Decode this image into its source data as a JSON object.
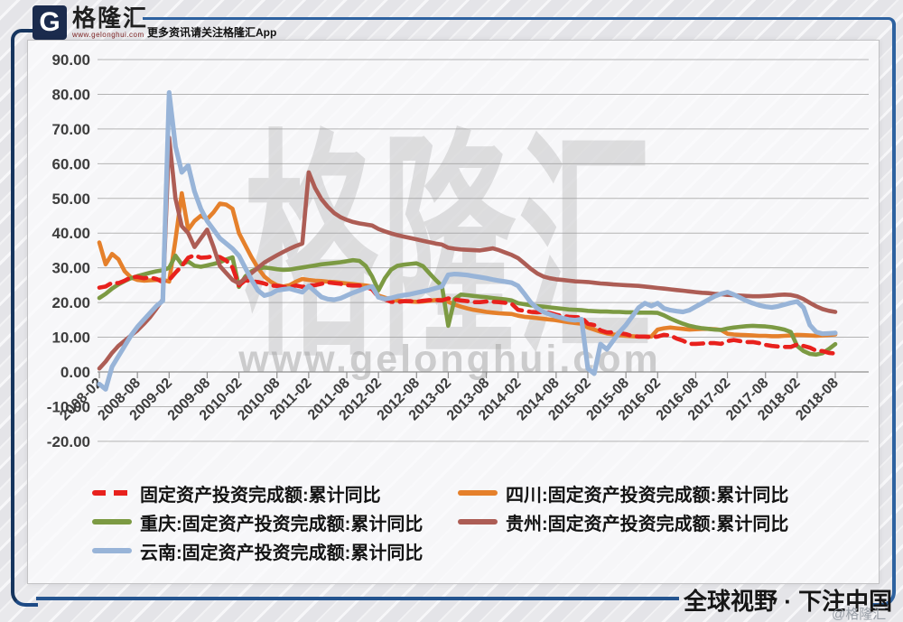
{
  "header": {
    "logo_letter": "G",
    "brand_name": "格隆汇",
    "brand_url": "www.gelonghui.com",
    "tagline": "更多资讯请关注格隆汇App"
  },
  "watermark": {
    "brand": "格隆汇",
    "url": "www.gelonghui.com"
  },
  "footer": {
    "slogan": "全球视野 · 下注中国",
    "credit": "@格隆汇"
  },
  "chart_data": {
    "type": "line",
    "title": "",
    "xlabel": "",
    "ylabel": "",
    "ylim": [
      -20,
      90
    ],
    "grid": true,
    "legend_position": "bottom",
    "y_ticks": [
      90,
      80,
      70,
      60,
      50,
      40,
      30,
      20,
      10,
      0,
      -10,
      -20
    ],
    "y_tick_decimals": 2,
    "n_points": 117,
    "x_tick_labels": [
      {
        "label": "2008-02",
        "index": 0
      },
      {
        "label": "2008-08",
        "index": 6
      },
      {
        "label": "2009-02",
        "index": 11
      },
      {
        "label": "2009-08",
        "index": 17
      },
      {
        "label": "2010-02",
        "index": 22
      },
      {
        "label": "2010-08",
        "index": 28
      },
      {
        "label": "2011-02",
        "index": 33
      },
      {
        "label": "2011-08",
        "index": 39
      },
      {
        "label": "2012-02",
        "index": 44
      },
      {
        "label": "2012-08",
        "index": 50
      },
      {
        "label": "2013-02",
        "index": 55
      },
      {
        "label": "2013-08",
        "index": 61
      },
      {
        "label": "2014-02",
        "index": 66
      },
      {
        "label": "2014-08",
        "index": 72
      },
      {
        "label": "2015-02",
        "index": 77
      },
      {
        "label": "2015-08",
        "index": 83
      },
      {
        "label": "2016-02",
        "index": 88
      },
      {
        "label": "2016-08",
        "index": 94
      },
      {
        "label": "2017-02",
        "index": 99
      },
      {
        "label": "2017-08",
        "index": 105
      },
      {
        "label": "2018-02",
        "index": 110
      },
      {
        "label": "2018-08",
        "index": 116
      }
    ],
    "series": [
      {
        "name": "固定资产投资完成额:累计同比",
        "color": "#e8211d",
        "dashed": true,
        "values": [
          24.3,
          24.6,
          25.7,
          25.6,
          26.3,
          27.3,
          27.4,
          27.0,
          27.2,
          26.8,
          25.9,
          26.5,
          28.6,
          30.5,
          32.9,
          33.6,
          32.9,
          33.0,
          33.4,
          33.1,
          32.1,
          30.1,
          24.9,
          26.4,
          26.1,
          25.9,
          25.5,
          24.9,
          24.8,
          24.5,
          24.4,
          24.9,
          24.5,
          24.9,
          25.0,
          25.4,
          25.8,
          25.6,
          25.4,
          25.0,
          24.9,
          24.9,
          24.5,
          23.8,
          21.5,
          20.9,
          20.2,
          20.1,
          20.4,
          20.4,
          20.2,
          20.5,
          20.7,
          20.7,
          20.6,
          21.2,
          20.9,
          20.6,
          20.4,
          20.1,
          20.1,
          20.3,
          20.2,
          20.1,
          19.9,
          19.6,
          17.9,
          17.6,
          17.3,
          17.2,
          17.3,
          17.0,
          16.5,
          16.1,
          15.9,
          15.8,
          15.7,
          13.9,
          13.5,
          12.0,
          11.4,
          11.4,
          11.2,
          10.9,
          10.3,
          10.2,
          10.2,
          10.0,
          10.2,
          10.7,
          10.5,
          9.6,
          9.0,
          8.1,
          8.1,
          8.2,
          8.3,
          8.3,
          8.1,
          8.9,
          9.2,
          8.9,
          8.6,
          8.6,
          8.3,
          7.8,
          7.5,
          7.3,
          7.2,
          7.2,
          7.9,
          7.5,
          7.0,
          6.1,
          6.0,
          5.5,
          5.3
        ]
      },
      {
        "name": "四川:固定资产投资完成额:累计同比",
        "color": "#e5802b",
        "dashed": false,
        "values": [
          37.3,
          31.0,
          34.0,
          32.5,
          29.0,
          27.2,
          26.5,
          26.3,
          26.4,
          26.5,
          26.6,
          26.0,
          38.0,
          51.5,
          41.0,
          43.5,
          45.0,
          44.0,
          46.0,
          48.5,
          48.2,
          47.0,
          40.0,
          36.5,
          33.0,
          30.0,
          27.5,
          26.0,
          25.0,
          24.6,
          25.0,
          26.0,
          26.8,
          26.5,
          26.3,
          26.2,
          26.0,
          25.9,
          25.7,
          25.5,
          25.3,
          25.1,
          24.9,
          24.6,
          22.0,
          21.4,
          20.9,
          20.6,
          20.4,
          20.3,
          20.2,
          20.3,
          20.5,
          20.7,
          20.8,
          20.2,
          19.4,
          18.8,
          18.3,
          17.9,
          17.6,
          17.3,
          17.1,
          16.9,
          16.8,
          16.7,
          16.2,
          15.9,
          15.7,
          15.5,
          15.3,
          15.1,
          14.9,
          14.6,
          14.3,
          14.1,
          13.9,
          12.8,
          12.2,
          11.6,
          11.1,
          10.8,
          10.6,
          10.4,
          10.3,
          10.2,
          10.2,
          10.2,
          12.2,
          12.6,
          12.8,
          12.6,
          12.4,
          12.2,
          12.3,
          12.4,
          12.4,
          12.3,
          12.1,
          11.0,
          10.8,
          10.7,
          10.6,
          10.5,
          10.4,
          10.4,
          10.3,
          10.3,
          10.4,
          10.5,
          10.7,
          10.6,
          10.5,
          10.4,
          10.5,
          10.7,
          10.8
        ]
      },
      {
        "name": "重庆:固定资产投资完成额:累计同比",
        "color": "#7c9a43",
        "dashed": false,
        "values": [
          21.3,
          22.5,
          24.0,
          25.2,
          26.2,
          27.0,
          27.6,
          28.1,
          28.6,
          29.0,
          29.3,
          30.0,
          33.5,
          31.0,
          31.8,
          30.6,
          30.3,
          30.7,
          31.1,
          31.6,
          32.4,
          33.0,
          24.5,
          27.5,
          29.0,
          29.8,
          30.1,
          29.9,
          29.6,
          29.4,
          29.5,
          29.8,
          30.1,
          30.4,
          30.7,
          31.0,
          31.2,
          31.4,
          31.6,
          31.9,
          32.2,
          32.0,
          30.5,
          27.5,
          23.5,
          27.0,
          29.5,
          30.6,
          30.9,
          31.1,
          31.3,
          30.5,
          28.5,
          26.5,
          24.8,
          13.3,
          21.0,
          22.3,
          22.1,
          21.9,
          21.7,
          21.5,
          21.3,
          21.1,
          20.9,
          20.6,
          19.8,
          19.5,
          19.2,
          19.0,
          18.8,
          18.6,
          18.4,
          18.2,
          18.0,
          17.9,
          17.8,
          17.6,
          17.5,
          17.4,
          17.4,
          17.3,
          17.3,
          17.2,
          17.2,
          17.1,
          17.1,
          17.1,
          17.0,
          16.3,
          15.4,
          14.6,
          13.9,
          13.3,
          12.9,
          12.6,
          12.4,
          12.2,
          12.1,
          12.5,
          12.8,
          13.0,
          13.2,
          13.3,
          13.2,
          13.1,
          12.9,
          12.6,
          12.2,
          11.5,
          7.5,
          6.0,
          5.2,
          5.0,
          5.4,
          6.6,
          8.0
        ]
      },
      {
        "name": "贵州:固定资产投资完成额:累计同比",
        "color": "#ad5d55",
        "dashed": false,
        "values": [
          1.0,
          3.0,
          5.5,
          7.5,
          9.0,
          10.5,
          12.0,
          13.8,
          15.8,
          18.2,
          20.9,
          67.5,
          50.0,
          42.0,
          40.0,
          36.0,
          38.5,
          41.0,
          36.0,
          30.5,
          28.5,
          26.5,
          25.5,
          27.0,
          28.5,
          30.0,
          31.5,
          32.6,
          33.6,
          34.6,
          35.5,
          36.3,
          37.0,
          57.5,
          53.0,
          49.8,
          47.6,
          45.8,
          44.6,
          43.8,
          43.2,
          42.8,
          42.5,
          42.2,
          41.2,
          40.5,
          39.9,
          39.4,
          39.0,
          38.6,
          38.2,
          37.8,
          37.4,
          37.0,
          36.7,
          35.8,
          35.5,
          35.3,
          35.2,
          35.1,
          35.0,
          35.3,
          35.6,
          35.1,
          34.4,
          33.7,
          32.8,
          31.3,
          29.7,
          28.4,
          27.5,
          27.0,
          26.7,
          26.5,
          26.3,
          26.1,
          26.0,
          25.9,
          25.7,
          25.5,
          25.4,
          25.2,
          25.1,
          25.0,
          24.9,
          24.8,
          24.6,
          24.4,
          24.2,
          24.0,
          23.8,
          23.6,
          23.4,
          23.2,
          23.0,
          22.8,
          22.7,
          22.5,
          22.4,
          22.2,
          22.1,
          22.0,
          21.9,
          21.8,
          21.8,
          21.9,
          22.0,
          22.2,
          22.3,
          22.2,
          21.8,
          21.0,
          19.9,
          18.9,
          18.1,
          17.6,
          17.3
        ]
      },
      {
        "name": "云南:固定资产投资完成额:累计同比",
        "color": "#98b4d8",
        "dashed": false,
        "values": [
          -3.5,
          -5.0,
          1.5,
          4.5,
          7.5,
          10.5,
          13.0,
          15.0,
          17.0,
          19.0,
          20.5,
          80.5,
          65.0,
          57.5,
          59.5,
          52.0,
          47.0,
          43.5,
          41.0,
          38.5,
          37.0,
          35.5,
          33.5,
          30.0,
          26.5,
          23.5,
          22.0,
          22.5,
          23.5,
          23.8,
          24.0,
          23.5,
          23.0,
          24.8,
          23.2,
          21.6,
          21.0,
          20.8,
          21.2,
          22.0,
          22.8,
          23.5,
          24.2,
          24.6,
          21.5,
          21.0,
          21.3,
          21.8,
          22.1,
          22.4,
          22.8,
          23.2,
          23.6,
          24.1,
          24.6,
          28.0,
          28.2,
          28.1,
          27.9,
          27.6,
          27.3,
          27.0,
          26.6,
          26.3,
          26.0,
          25.7,
          24.8,
          22.5,
          20.0,
          18.4,
          17.3,
          16.6,
          16.0,
          15.5,
          15.1,
          14.9,
          15.2,
          1.0,
          -0.5,
          8.0,
          6.5,
          9.0,
          11.5,
          13.5,
          16.0,
          18.5,
          19.8,
          19.0,
          19.8,
          18.3,
          17.8,
          17.5,
          17.3,
          17.8,
          18.8,
          19.8,
          20.8,
          21.8,
          22.5,
          23.0,
          22.3,
          21.4,
          20.5,
          19.8,
          19.2,
          18.8,
          18.6,
          18.9,
          19.4,
          19.9,
          20.3,
          18.5,
          13.5,
          11.5,
          11.0,
          11.1,
          11.2
        ]
      }
    ]
  }
}
